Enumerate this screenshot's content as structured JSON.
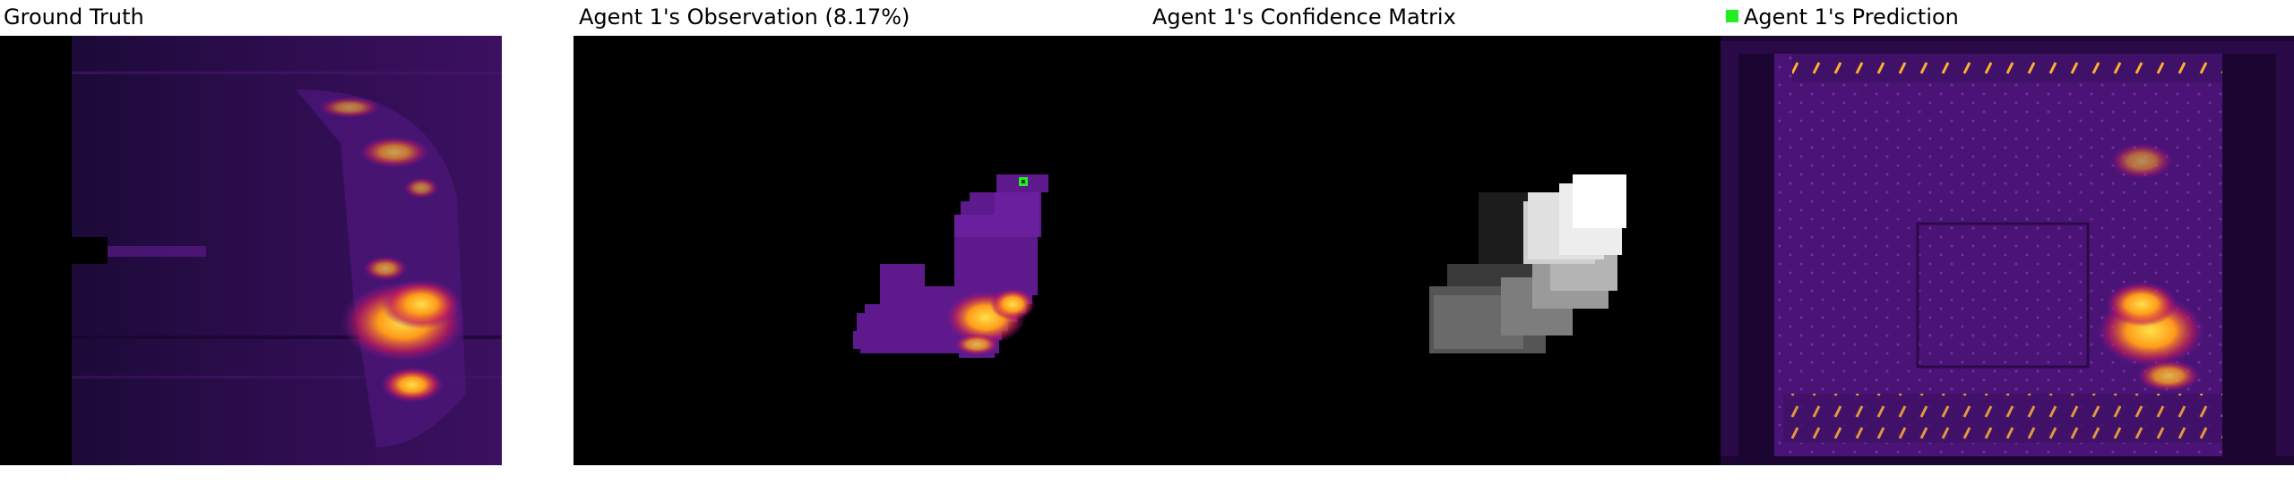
{
  "titles": {
    "ground_truth": "Ground Truth",
    "observation": "Agent 1's Observation (8.17%)",
    "confidence": "Agent 1's Confidence Matrix",
    "prediction": "Agent 1's Prediction"
  },
  "colors": {
    "agent_marker": "#22ee22",
    "background_black": "#000000",
    "thermal_dark": "#3a0f5a",
    "thermal_mid": "#6a1b9a",
    "thermal_hot": "#ff9b1a",
    "thermal_peak": "#ffe14a"
  },
  "icons": {
    "agent_marker": "green-square-icon"
  }
}
